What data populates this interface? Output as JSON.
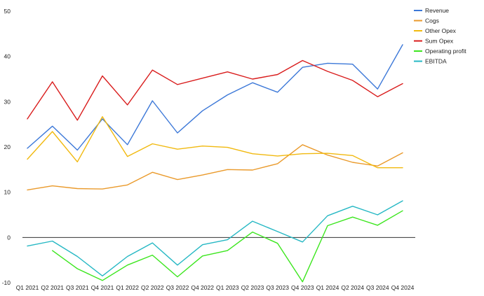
{
  "chart_data": {
    "type": "line",
    "categories": [
      "Q1 2021",
      "Q2 2021",
      "Q3 2021",
      "Q4 2021",
      "Q1 2022",
      "Q2 2022",
      "Q3 2022",
      "Q4 2022",
      "Q1 2023",
      "Q2 2023",
      "Q3 2023",
      "Q4 2023",
      "Q1 2024",
      "Q2 2024",
      "Q3 2024",
      "Q4 2024"
    ],
    "ylim": [
      -10,
      50
    ],
    "yticks": [
      -10,
      0,
      10,
      20,
      30,
      40,
      50
    ],
    "grid": false,
    "legend_position": "top-right",
    "series": [
      {
        "name": "Revenue",
        "color": "#3c78d8",
        "values": [
          19.7,
          24.6,
          19.3,
          26.2,
          20.5,
          30.2,
          23.1,
          28.0,
          31.5,
          34.2,
          32.1,
          37.6,
          38.5,
          38.3,
          32.8,
          42.6
        ]
      },
      {
        "name": "Cogs",
        "color": "#ea9a2b",
        "values": [
          10.5,
          11.4,
          10.8,
          10.7,
          11.6,
          14.4,
          12.8,
          13.8,
          15.0,
          14.9,
          16.3,
          20.5,
          18.2,
          16.6,
          15.8,
          18.7
        ]
      },
      {
        "name": "Other Opex",
        "color": "#f1b90f",
        "values": [
          17.3,
          23.4,
          16.7,
          26.7,
          17.9,
          20.7,
          19.5,
          20.2,
          19.9,
          18.5,
          18.0,
          18.5,
          18.6,
          18.1,
          15.4,
          15.4
        ]
      },
      {
        "name": "Sum Opex",
        "color": "#d91c1c",
        "values": [
          26.2,
          34.4,
          25.9,
          35.7,
          29.3,
          37.0,
          33.8,
          35.2,
          36.6,
          35.0,
          36.0,
          39.1,
          36.7,
          34.7,
          31.1,
          34.0
        ]
      },
      {
        "name": "Operating profit",
        "color": "#3ce61e",
        "values": [
          null,
          -2.9,
          -6.9,
          -9.5,
          -6.1,
          -3.9,
          -8.7,
          -4.1,
          -2.9,
          1.2,
          -1.3,
          -9.8,
          2.6,
          4.5,
          2.7,
          5.9
        ]
      },
      {
        "name": "EBITDA",
        "color": "#26b8c4",
        "values": [
          -1.9,
          -0.8,
          -4.2,
          -8.5,
          -4.2,
          -1.2,
          -6.1,
          -1.6,
          -0.5,
          3.6,
          1.3,
          -1.0,
          4.8,
          6.9,
          5.0,
          8.1
        ]
      }
    ]
  }
}
